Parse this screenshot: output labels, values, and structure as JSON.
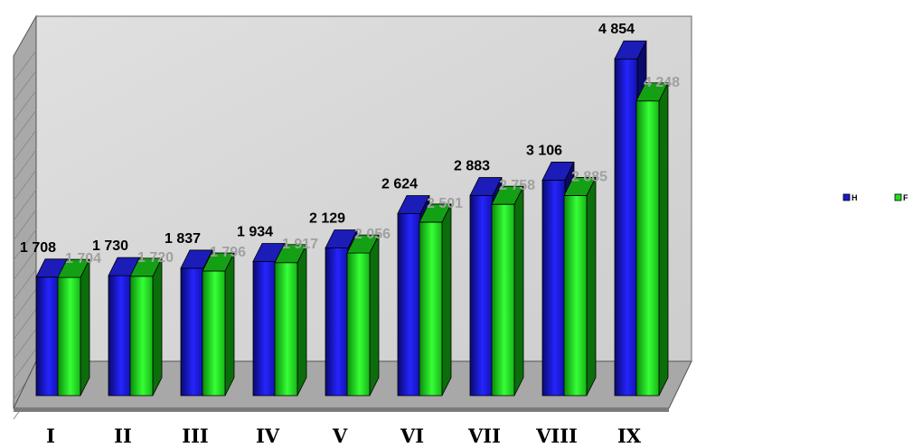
{
  "chart_data": {
    "type": "bar",
    "categories": [
      "I",
      "II",
      "III",
      "IV",
      "V",
      "VI",
      "VII",
      "VIII",
      "IX"
    ],
    "series": [
      {
        "name": "H",
        "values": [
          1708,
          1730,
          1837,
          1934,
          2129,
          2624,
          2883,
          3106,
          4854
        ],
        "labels": [
          "1 708",
          "1 730",
          "1 837",
          "1 934",
          "2 129",
          "2 624",
          "2 883",
          "3 106",
          "4 854"
        ]
      },
      {
        "name": "F",
        "values": [
          1704,
          1720,
          1796,
          1917,
          2056,
          2501,
          2758,
          2885,
          4248
        ],
        "labels": [
          "1 704",
          "1 720",
          "1 796",
          "1 917",
          "2 056",
          "2 501",
          "2 758",
          "2 885",
          "4 248"
        ]
      }
    ],
    "legend_position": "right",
    "style": "3d-clustered-bar",
    "grid": false,
    "colors": {
      "H": "#1a1ad0",
      "F": "#1ee01e",
      "wall": "#d8d8d8",
      "floor": "#a8a8a8"
    }
  }
}
